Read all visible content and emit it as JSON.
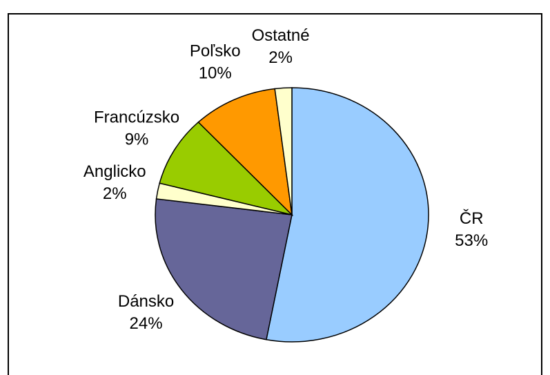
{
  "chart_data": {
    "type": "pie",
    "categories": [
      "ČR",
      "Dánsko",
      "Anglicko",
      "Francúzsko",
      "Poľsko",
      "Ostatné"
    ],
    "values": [
      53,
      24,
      2,
      9,
      10,
      2
    ],
    "value_labels": [
      "53%",
      "24%",
      "2%",
      "9%",
      "10%",
      "2%"
    ],
    "colors": [
      "#99ccff",
      "#666699",
      "#ffffcc",
      "#99cc00",
      "#ff9900",
      "#ffffcc"
    ]
  }
}
